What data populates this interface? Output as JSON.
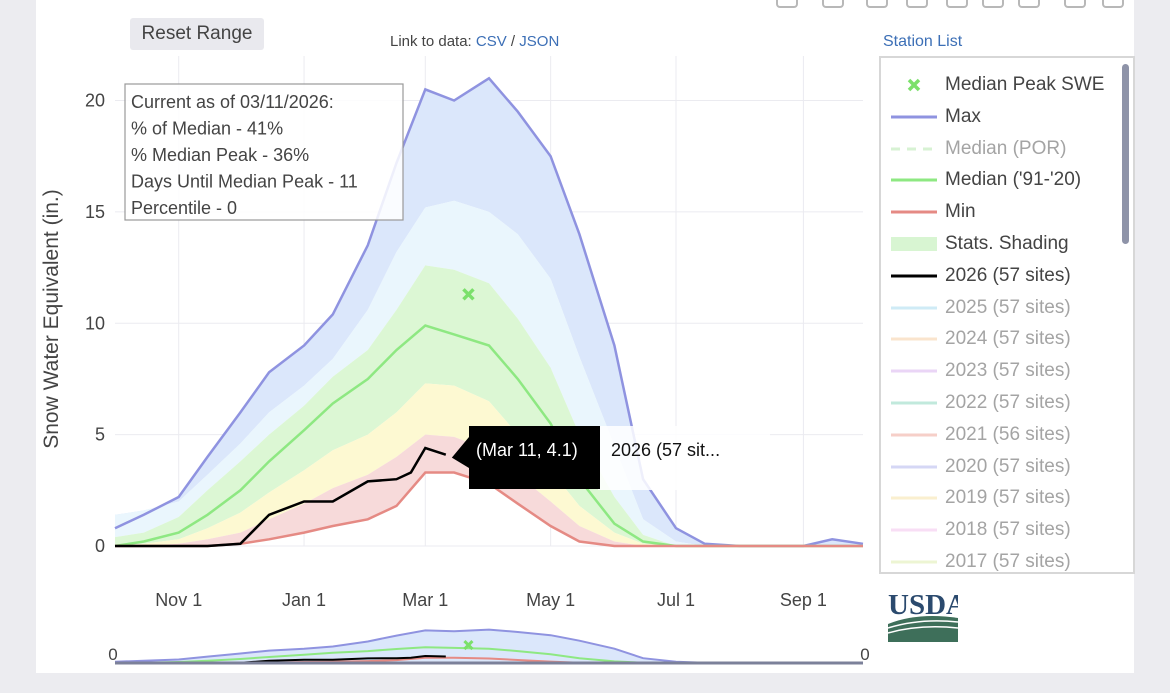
{
  "toolbar": {
    "reset_label": "Reset Range"
  },
  "data_links": {
    "prefix": "Link to data:",
    "csv": "CSV",
    "separator": "/",
    "json": "JSON"
  },
  "station_list_label": "Station List",
  "info_box": [
    "Current as of 03/11/2026:",
    "% of Median - 41%",
    "% Median Peak - 36%",
    "Days Until Median Peak - 11",
    "Percentile - 0"
  ],
  "tooltip": {
    "point": "(Mar 11, 4.1)",
    "series": "2026 (57 sit..."
  },
  "logo_text": "USDA",
  "range_slider": {
    "left_handle": "0",
    "right_handle": "0"
  },
  "legend": [
    {
      "label": "Median Peak SWE",
      "color": "#7be06b",
      "kind": "marker",
      "active": true
    },
    {
      "label": "Max",
      "color": "#8f93e0",
      "kind": "line",
      "active": true
    },
    {
      "label": "Median (POR)",
      "color": "#b8e8b0",
      "kind": "dash",
      "active": false
    },
    {
      "label": "Median ('91-'20)",
      "color": "#8ee882",
      "kind": "line",
      "active": true
    },
    {
      "label": "Min",
      "color": "#e58a84",
      "kind": "line",
      "active": true
    },
    {
      "label": "Stats. Shading",
      "color": "#d8f5d2",
      "kind": "box",
      "active": true
    },
    {
      "label": "2026 (57 sites)",
      "color": "#000000",
      "kind": "line",
      "active": true
    },
    {
      "label": "2025 (57 sites)",
      "color": "#a8dcf0",
      "kind": "line",
      "active": false
    },
    {
      "label": "2024 (57 sites)",
      "color": "#f6cfa6",
      "kind": "line",
      "active": false
    },
    {
      "label": "2023 (57 sites)",
      "color": "#d9b4f0",
      "kind": "line",
      "active": false
    },
    {
      "label": "2022 (57 sites)",
      "color": "#8fd8c0",
      "kind": "line",
      "active": false
    },
    {
      "label": "2021 (56 sites)",
      "color": "#f0a89c",
      "kind": "line",
      "active": false
    },
    {
      "label": "2020 (57 sites)",
      "color": "#b4b8ee",
      "kind": "line",
      "active": false
    },
    {
      "label": "2019 (57 sites)",
      "color": "#f6e2a8",
      "kind": "line",
      "active": false
    },
    {
      "label": "2018 (57 sites)",
      "color": "#f3c4ee",
      "kind": "line",
      "active": false
    },
    {
      "label": "2017 (57 sites)",
      "color": "#dfeeb0",
      "kind": "line",
      "active": false
    }
  ],
  "chart_data": {
    "type": "area",
    "title": "",
    "xlabel": "",
    "ylabel": "Snow Water Equivalent (in.)",
    "x_ticks": [
      "Nov 1",
      "Jan 1",
      "Mar 1",
      "May 1",
      "Jul 1",
      "Sep 1"
    ],
    "y_ticks": [
      0,
      5,
      10,
      15,
      20
    ],
    "ylim": [
      0,
      22
    ],
    "x_domain": [
      "Oct 1",
      "Sep 30"
    ],
    "grid": true,
    "x": [
      "Oct 1",
      "Oct 15",
      "Nov 1",
      "Nov 15",
      "Dec 1",
      "Dec 15",
      "Jan 1",
      "Jan 15",
      "Feb 1",
      "Feb 15",
      "Mar 1",
      "Mar 15",
      "Apr 1",
      "Apr 15",
      "May 1",
      "May 15",
      "Jun 1",
      "Jun 15",
      "Jul 1",
      "Jul 15",
      "Aug 1",
      "Aug 15",
      "Sep 1",
      "Sep 15",
      "Sep 30"
    ],
    "series": [
      {
        "name": "Max",
        "values": [
          0.8,
          1.4,
          2.2,
          4.0,
          6.0,
          7.8,
          9.0,
          10.4,
          13.5,
          17.2,
          20.5,
          20.0,
          21.0,
          19.5,
          17.5,
          14.0,
          9.0,
          3.0,
          0.8,
          0.1,
          0.0,
          0.0,
          0.0,
          0.3,
          0.1
        ]
      },
      {
        "name": "Median ('91-'20)",
        "values": [
          0.0,
          0.2,
          0.6,
          1.4,
          2.5,
          3.8,
          5.2,
          6.4,
          7.5,
          8.8,
          9.9,
          9.5,
          9.0,
          7.5,
          5.5,
          3.0,
          1.0,
          0.2,
          0.0,
          0.0,
          0.0,
          0.0,
          0.0,
          0.0,
          0.0
        ]
      },
      {
        "name": "Min",
        "values": [
          0.0,
          0.0,
          0.0,
          0.0,
          0.1,
          0.3,
          0.6,
          0.9,
          1.2,
          1.8,
          3.3,
          3.3,
          2.8,
          1.9,
          0.9,
          0.2,
          0.0,
          0.0,
          0.0,
          0.0,
          0.0,
          0.0,
          0.0,
          0.0,
          0.0
        ]
      },
      {
        "name": "2026 (57 sites)",
        "x": [
          "Oct 1",
          "Oct 15",
          "Nov 1",
          "Nov 15",
          "Dec 1",
          "Dec 15",
          "Jan 1",
          "Jan 15",
          "Feb 1",
          "Feb 15",
          "Feb 22",
          "Mar 1",
          "Mar 11"
        ],
        "values": [
          0.0,
          0.0,
          0.0,
          0.0,
          0.1,
          1.4,
          2.0,
          2.0,
          2.9,
          3.0,
          3.3,
          4.4,
          4.1
        ]
      }
    ],
    "stats_shading": {
      "outer": [
        1.4,
        1.6,
        2.0,
        3.2,
        4.6,
        6.0,
        7.2,
        8.4,
        10.6,
        13.2,
        15.2,
        15.5,
        15.0,
        14.0,
        12.0,
        8.5,
        4.5,
        1.2,
        0.2,
        0.0,
        0.0,
        0.0,
        0.0,
        0.0,
        0.0
      ],
      "q75": [
        0.4,
        0.6,
        1.3,
        2.5,
        3.8,
        5.0,
        6.3,
        7.6,
        8.8,
        10.6,
        12.6,
        12.4,
        11.8,
        10.2,
        8.0,
        5.0,
        2.2,
        0.5,
        0.0,
        0.0,
        0.0,
        0.0,
        0.0,
        0.0,
        0.0
      ],
      "q25": [
        0.0,
        0.1,
        0.3,
        0.8,
        1.5,
        2.4,
        3.4,
        4.3,
        5.0,
        6.0,
        7.3,
        7.2,
        6.5,
        5.0,
        3.4,
        1.8,
        0.6,
        0.1,
        0.0,
        0.0,
        0.0,
        0.0,
        0.0,
        0.0,
        0.0
      ],
      "q10": [
        0.0,
        0.0,
        0.1,
        0.3,
        0.6,
        1.2,
        1.9,
        2.6,
        3.2,
        4.0,
        5.0,
        4.9,
        4.3,
        3.2,
        2.0,
        0.9,
        0.2,
        0.0,
        0.0,
        0.0,
        0.0,
        0.0,
        0.0,
        0.0,
        0.0
      ],
      "q05": [
        0.0,
        0.0,
        0.0,
        0.1,
        0.3,
        0.6,
        1.0,
        1.5,
        2.0,
        2.8,
        3.6,
        3.6,
        3.2,
        2.4,
        1.4,
        0.5,
        0.1,
        0.0,
        0.0,
        0.0,
        0.0,
        0.0,
        0.0,
        0.0,
        0.0
      ]
    },
    "median_peak": {
      "x": "Mar 22",
      "y": 11.3
    },
    "colors": {
      "max": "#8f93e0",
      "median": "#8ee882",
      "min": "#e58a84",
      "current": "#000000",
      "band_outer": "#dbe7fb",
      "band_upper": "#eaf6fd",
      "band_mid": "#dcf7d4",
      "band_lower": "#fdf9d2",
      "band_low": "#f7dada",
      "peak": "#7be06b"
    }
  }
}
